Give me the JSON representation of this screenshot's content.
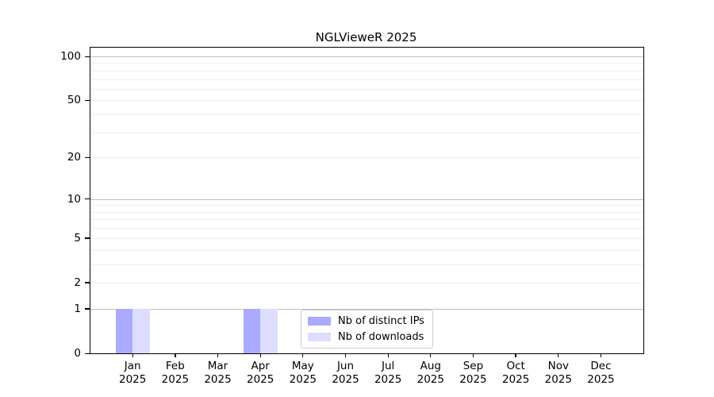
{
  "chart_data": {
    "type": "bar",
    "title": "NGLVieweR 2025",
    "categories": [
      "Jan",
      "Feb",
      "Mar",
      "Apr",
      "May",
      "Jun",
      "Jul",
      "Aug",
      "Sep",
      "Oct",
      "Nov",
      "Dec"
    ],
    "category_year": "2025",
    "series": [
      {
        "name": "Nb of distinct IPs",
        "color": "#aaaaff",
        "values": [
          1,
          0,
          0,
          1,
          0,
          0,
          0,
          0,
          0,
          0,
          0,
          0
        ]
      },
      {
        "name": "Nb of downloads",
        "color": "#ddddff",
        "values": [
          1,
          0,
          0,
          1,
          0,
          0,
          0,
          0,
          0,
          0,
          0,
          0
        ]
      }
    ],
    "yscale": "log1p",
    "ylim": [
      0,
      100
    ],
    "ytick_labels": [
      100,
      50,
      20,
      10,
      5,
      2,
      1,
      0
    ],
    "major_gridlines": [
      1,
      10,
      100
    ],
    "minor_gridlines": [
      2,
      3,
      4,
      5,
      6,
      7,
      8,
      9,
      20,
      30,
      40,
      50,
      60,
      70,
      80,
      90
    ],
    "grid_on": true,
    "legend_position": "inside-bottom-center",
    "colors": {
      "major_grid": "#bdbdbd",
      "minor_grid": "#ededed",
      "frame": "#000000"
    }
  }
}
